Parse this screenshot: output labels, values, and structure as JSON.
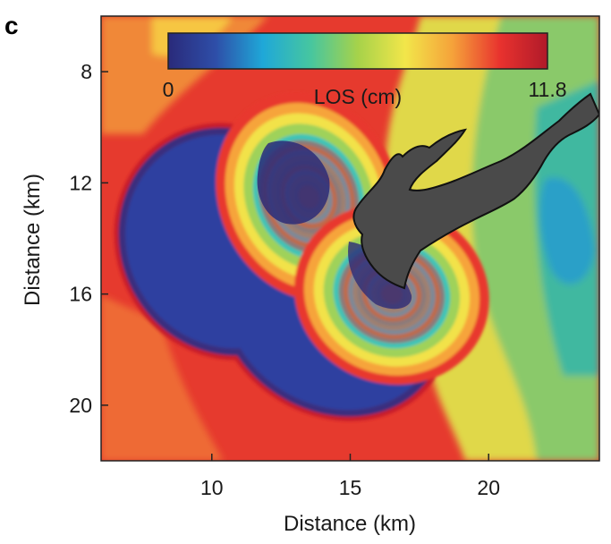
{
  "chart_data": {
    "type": "heatmap",
    "panel_label": "c",
    "xlabel": "Distance (km)",
    "ylabel": "Distance (km)",
    "xlim": [
      6,
      24
    ],
    "ylim": [
      22,
      6
    ],
    "x_ticks": [
      10,
      15,
      20
    ],
    "y_ticks": [
      8,
      12,
      16,
      20
    ],
    "colorbar": {
      "label": "LOS (cm)",
      "min": 0,
      "max": 11.8,
      "min_label": "0",
      "max_label": "11.8",
      "colormap": [
        "#2a2a7a",
        "#2e4ea8",
        "#1fa8d8",
        "#46c6a0",
        "#a6d24a",
        "#f2e64a",
        "#f5a23a",
        "#e8322e",
        "#b01a2a"
      ]
    },
    "features": {
      "deformation_lobes": [
        {
          "center_km": [
            13.5,
            12.5
          ],
          "radii_km": [
            3.2,
            4.2
          ]
        },
        {
          "center_km": [
            16.5,
            16.0
          ],
          "radii_km": [
            3.4,
            4.0
          ]
        }
      ],
      "water_body_color": "#4a4a4a",
      "background_color": "#e84030"
    }
  }
}
